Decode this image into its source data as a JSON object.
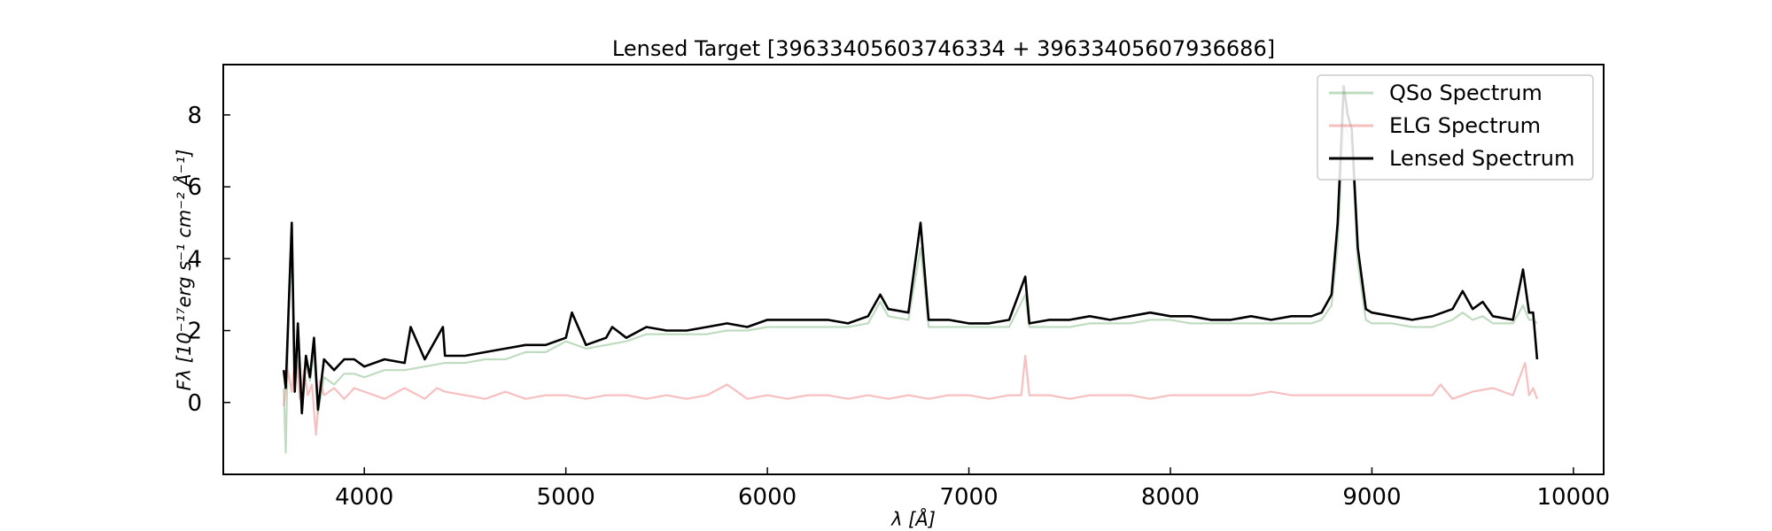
{
  "chart_data": {
    "type": "line",
    "title": "Lensed Target [39633405603746334 + 39633405607936686]",
    "xlabel": "λ [Å]",
    "ylabel": "Fλ [10⁻¹⁷erg s⁻¹ cm⁻² Å⁻¹]",
    "xlim": [
      3300,
      10150
    ],
    "ylim": [
      -2,
      9.4
    ],
    "x_ticks": [
      4000,
      5000,
      6000,
      7000,
      8000,
      9000,
      10000
    ],
    "y_ticks": [
      0,
      2,
      4,
      6,
      8
    ],
    "legend_position": "top-right",
    "grid": false,
    "series": [
      {
        "name": "QSo Spectrum",
        "color": "#2e8b2e",
        "opacity": 0.3,
        "x": [
          3600,
          3610,
          3625,
          3640,
          3655,
          3670,
          3690,
          3710,
          3730,
          3750,
          3770,
          3800,
          3850,
          3900,
          3950,
          4000,
          4100,
          4200,
          4300,
          4400,
          4500,
          4600,
          4700,
          4800,
          4900,
          5000,
          5100,
          5200,
          5300,
          5400,
          5500,
          5600,
          5700,
          5800,
          5900,
          6000,
          6100,
          6200,
          6300,
          6400,
          6500,
          6560,
          6600,
          6700,
          6760,
          6800,
          6900,
          7000,
          7100,
          7200,
          7280,
          7300,
          7400,
          7500,
          7600,
          7700,
          7800,
          7900,
          8000,
          8100,
          8200,
          8300,
          8400,
          8500,
          8600,
          8700,
          8750,
          8800,
          8830,
          8860,
          8880,
          8900,
          8930,
          8970,
          9000,
          9100,
          9200,
          9300,
          9400,
          9450,
          9500,
          9550,
          9600,
          9700,
          9750,
          9780,
          9800,
          9820
        ],
        "y": [
          0.4,
          -1.4,
          2.5,
          4.3,
          0.3,
          1.3,
          0.1,
          1.2,
          0.6,
          1.4,
          -0.3,
          0.7,
          0.5,
          0.8,
          0.8,
          0.7,
          0.9,
          0.9,
          1.0,
          1.1,
          1.1,
          1.2,
          1.2,
          1.4,
          1.4,
          1.7,
          1.5,
          1.6,
          1.7,
          1.9,
          1.9,
          1.9,
          1.9,
          2.0,
          2.0,
          2.1,
          2.1,
          2.1,
          2.1,
          2.1,
          2.2,
          2.8,
          2.4,
          2.3,
          4.3,
          2.1,
          2.1,
          2.1,
          2.1,
          2.1,
          3.0,
          2.1,
          2.1,
          2.1,
          2.2,
          2.2,
          2.2,
          2.3,
          2.3,
          2.2,
          2.2,
          2.2,
          2.2,
          2.2,
          2.2,
          2.2,
          2.3,
          2.7,
          4.4,
          7.8,
          7.5,
          7.2,
          3.9,
          2.3,
          2.2,
          2.2,
          2.1,
          2.1,
          2.3,
          2.5,
          2.3,
          2.4,
          2.2,
          2.2,
          2.7,
          2.3,
          2.3,
          2.2
        ]
      },
      {
        "name": "ELG Spectrum",
        "color": "#f08080",
        "opacity": 0.5,
        "x": [
          3600,
          3620,
          3640,
          3660,
          3680,
          3700,
          3720,
          3740,
          3760,
          3780,
          3800,
          3850,
          3900,
          3950,
          4000,
          4100,
          4200,
          4300,
          4360,
          4400,
          4500,
          4600,
          4700,
          4800,
          4900,
          5000,
          5100,
          5200,
          5300,
          5400,
          5500,
          5600,
          5700,
          5800,
          5900,
          6000,
          6100,
          6200,
          6300,
          6400,
          6500,
          6600,
          6700,
          6800,
          6900,
          7000,
          7100,
          7200,
          7260,
          7280,
          7300,
          7400,
          7500,
          7600,
          7700,
          7800,
          7900,
          8000,
          8100,
          8200,
          8300,
          8400,
          8500,
          8600,
          8700,
          8800,
          8900,
          9000,
          9100,
          9200,
          9300,
          9340,
          9400,
          9500,
          9600,
          9700,
          9760,
          9780,
          9800,
          9820
        ],
        "y": [
          -0.1,
          0.9,
          0.3,
          1.5,
          0.1,
          0.9,
          0.2,
          0.5,
          -0.9,
          0.6,
          0.2,
          0.4,
          0.1,
          0.4,
          0.3,
          0.1,
          0.4,
          0.1,
          0.4,
          0.3,
          0.2,
          0.1,
          0.3,
          0.1,
          0.2,
          0.2,
          0.1,
          0.2,
          0.2,
          0.1,
          0.2,
          0.1,
          0.2,
          0.5,
          0.1,
          0.2,
          0.1,
          0.2,
          0.2,
          0.1,
          0.2,
          0.1,
          0.2,
          0.1,
          0.2,
          0.2,
          0.1,
          0.2,
          0.2,
          1.3,
          0.2,
          0.2,
          0.1,
          0.2,
          0.2,
          0.2,
          0.1,
          0.2,
          0.2,
          0.2,
          0.2,
          0.2,
          0.3,
          0.2,
          0.2,
          0.2,
          0.2,
          0.2,
          0.2,
          0.2,
          0.2,
          0.5,
          0.1,
          0.3,
          0.4,
          0.2,
          1.1,
          0.2,
          0.4,
          0.1
        ]
      },
      {
        "name": "Lensed Spectrum",
        "color": "#000000",
        "opacity": 1.0,
        "x": [
          3600,
          3610,
          3625,
          3640,
          3655,
          3670,
          3690,
          3710,
          3730,
          3750,
          3770,
          3800,
          3850,
          3900,
          3950,
          4000,
          4100,
          4200,
          4230,
          4300,
          4390,
          4400,
          4500,
          4600,
          4700,
          4800,
          4900,
          5000,
          5030,
          5100,
          5200,
          5230,
          5300,
          5400,
          5500,
          5600,
          5700,
          5800,
          5900,
          6000,
          6100,
          6200,
          6300,
          6400,
          6500,
          6560,
          6600,
          6700,
          6760,
          6800,
          6900,
          7000,
          7100,
          7200,
          7280,
          7300,
          7400,
          7500,
          7600,
          7700,
          7800,
          7900,
          8000,
          8100,
          8200,
          8300,
          8400,
          8500,
          8600,
          8700,
          8750,
          8800,
          8830,
          8860,
          8880,
          8900,
          8930,
          8970,
          9000,
          9100,
          9200,
          9300,
          9400,
          9450,
          9500,
          9550,
          9600,
          9700,
          9750,
          9780,
          9800,
          9820
        ],
        "y": [
          0.9,
          0.4,
          2.7,
          5.0,
          0.3,
          2.2,
          -0.3,
          1.3,
          0.7,
          1.8,
          -0.2,
          1.2,
          0.9,
          1.2,
          1.2,
          1.0,
          1.2,
          1.1,
          2.1,
          1.2,
          2.1,
          1.3,
          1.3,
          1.4,
          1.5,
          1.6,
          1.6,
          1.8,
          2.5,
          1.6,
          1.8,
          2.1,
          1.8,
          2.1,
          2.0,
          2.0,
          2.1,
          2.2,
          2.1,
          2.3,
          2.3,
          2.3,
          2.3,
          2.2,
          2.4,
          3.0,
          2.6,
          2.5,
          5.0,
          2.3,
          2.3,
          2.2,
          2.2,
          2.3,
          3.5,
          2.2,
          2.3,
          2.3,
          2.4,
          2.3,
          2.4,
          2.5,
          2.4,
          2.4,
          2.3,
          2.3,
          2.4,
          2.3,
          2.4,
          2.4,
          2.5,
          3.0,
          5.0,
          8.8,
          8.0,
          7.6,
          4.3,
          2.6,
          2.5,
          2.4,
          2.3,
          2.4,
          2.6,
          3.1,
          2.6,
          2.8,
          2.4,
          2.3,
          3.7,
          2.5,
          2.5,
          1.2
        ]
      }
    ]
  }
}
